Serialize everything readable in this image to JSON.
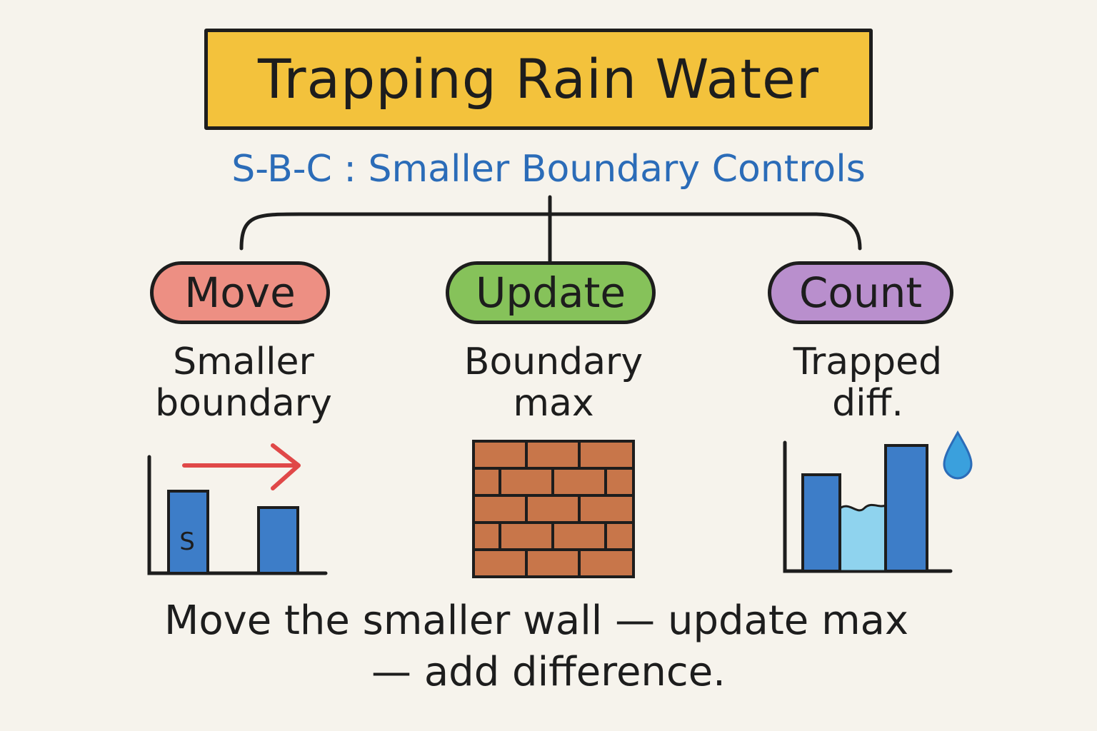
{
  "title": "Trapping Rain Water",
  "subtitle": "S-B-C : Smaller Boundary Controls",
  "steps": [
    {
      "label": "Move",
      "color": "#ed8f83",
      "desc_lines": [
        "Smaller",
        "boundary"
      ],
      "icon": "bar-with-arrow-icon",
      "icon_text": "S"
    },
    {
      "label": "Update",
      "color": "#86c25a",
      "desc_lines": [
        "Boundary",
        "max"
      ],
      "icon": "brick-wall-icon"
    },
    {
      "label": "Count",
      "color": "#b98fcd",
      "desc_lines": [
        "Trapped",
        "diff."
      ],
      "icon": "trapped-water-bars-icon"
    }
  ],
  "footer_lines": [
    "Move the smaller wall — update max",
    "— add difference."
  ],
  "colors": {
    "title_bg": "#f3c23c",
    "subtitle": "#2b6cb8",
    "bar_blue": "#3d7dc8",
    "arrow_red": "#e04848",
    "brick": "#c8764a",
    "water": "#8fd3ee"
  }
}
